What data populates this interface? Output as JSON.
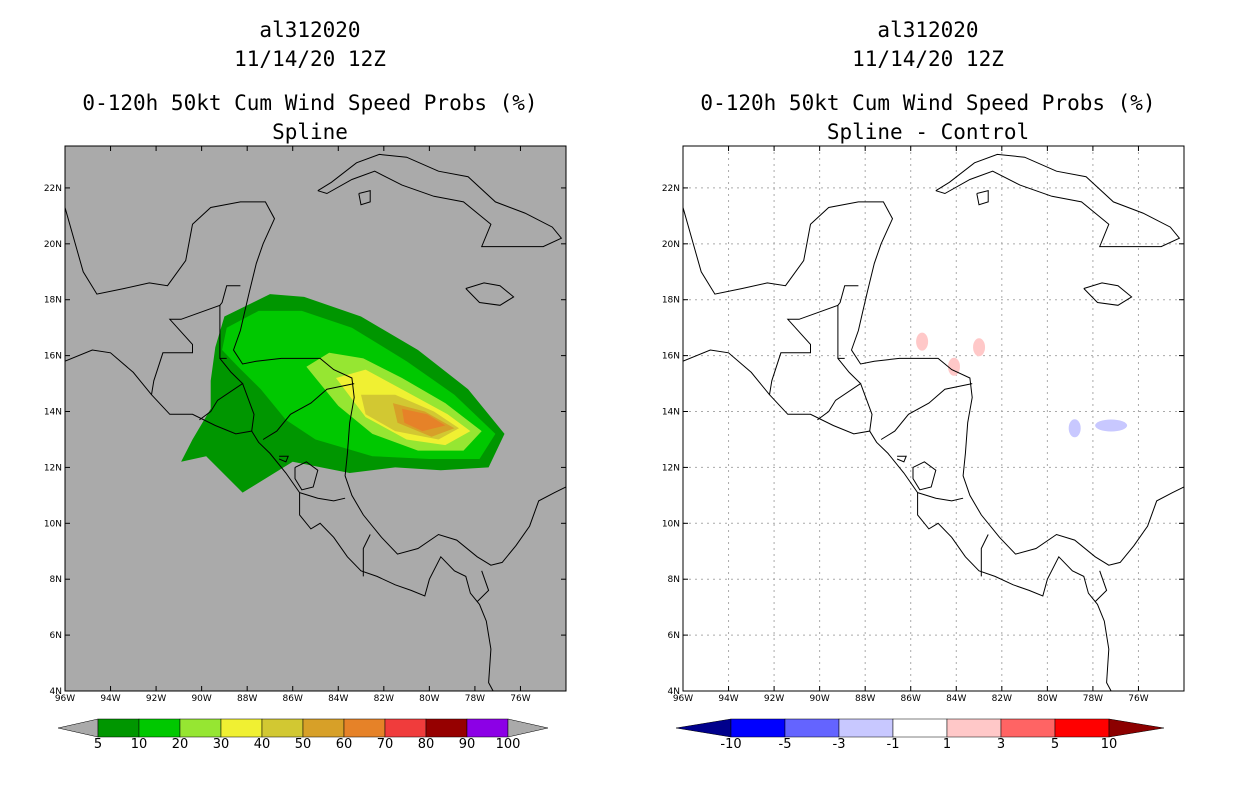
{
  "panels": [
    {
      "title_lines": [
        "al312020",
        "11/14/20 12Z",
        "0-120h 50kt Cum Wind Speed Probs (%)",
        "Spline"
      ],
      "background": "#aaaaaa",
      "colorbar": {
        "labels": [
          "5",
          "10",
          "20",
          "30",
          "40",
          "50",
          "60",
          "70",
          "80",
          "90",
          "100"
        ],
        "colors": [
          "#009600",
          "#00c800",
          "#96e632",
          "#f0f032",
          "#d2c832",
          "#d7a028",
          "#e68228",
          "#f03c3c",
          "#960000",
          "#8c00e6"
        ],
        "extend_color": "#aaaaaa"
      }
    },
    {
      "title_lines": [
        "al312020",
        "11/14/20 12Z",
        "0-120h 50kt Cum Wind Speed Probs (%)",
        "Spline - Control"
      ],
      "background": "#ffffff",
      "colorbar": {
        "labels": [
          "-10",
          "-5",
          "-3",
          "-1",
          "1",
          "3",
          "5",
          "10"
        ],
        "colors": [
          "#0000ff",
          "#6464ff",
          "#c8c8ff",
          "#ffffff",
          "#ffc8c8",
          "#ff6464",
          "#ff0000"
        ],
        "extend_left": "#00008c",
        "extend_right": "#8c0000"
      }
    }
  ],
  "chart_data": [
    {
      "type": "heatmap",
      "title": "0-120h 50kt Cum Wind Speed Probs (%)",
      "subtitle": "Spline",
      "storm": "al312020",
      "date": "11/14/20 12Z",
      "xlim": [
        -96,
        -74
      ],
      "ylim": [
        4,
        23.5
      ],
      "xticks": [
        "96W",
        "94W",
        "92W",
        "90W",
        "88W",
        "86W",
        "84W",
        "82W",
        "80W",
        "78W",
        "76W"
      ],
      "yticks": [
        "4N",
        "6N",
        "8N",
        "10N",
        "12N",
        "14N",
        "16N",
        "18N",
        "20N",
        "22N"
      ],
      "grid": false,
      "contours": [
        {
          "level": 5,
          "polygon": [
            [
              -90.9,
              12.2
            ],
            [
              -90.4,
              13.0
            ],
            [
              -89.6,
              14.1
            ],
            [
              -89.6,
              15.1
            ],
            [
              -89.4,
              16.3
            ],
            [
              -89.0,
              17.4
            ],
            [
              -87.0,
              18.2
            ],
            [
              -85.5,
              18.1
            ],
            [
              -83.0,
              17.4
            ],
            [
              -80.5,
              16.2
            ],
            [
              -78.3,
              14.8
            ],
            [
              -76.7,
              13.2
            ],
            [
              -77.4,
              12.0
            ],
            [
              -79.5,
              11.9
            ],
            [
              -81.5,
              12.0
            ],
            [
              -83.5,
              11.8
            ],
            [
              -86.0,
              12.2
            ],
            [
              -88.2,
              11.1
            ],
            [
              -89.8,
              12.4
            ]
          ]
        },
        {
          "level": 10,
          "polygon": [
            [
              -89.1,
              16.2
            ],
            [
              -88.9,
              17.0
            ],
            [
              -87.5,
              17.6
            ],
            [
              -85.6,
              17.6
            ],
            [
              -83.4,
              17.0
            ],
            [
              -81.0,
              15.8
            ],
            [
              -78.9,
              14.6
            ],
            [
              -77.1,
              13.2
            ],
            [
              -77.8,
              12.3
            ],
            [
              -80.0,
              12.3
            ],
            [
              -82.5,
              12.4
            ],
            [
              -85.0,
              13.0
            ],
            [
              -86.3,
              13.7
            ],
            [
              -87.4,
              14.8
            ],
            [
              -88.4,
              15.6
            ]
          ]
        },
        {
          "level": 20,
          "polygon": [
            [
              -85.4,
              15.6
            ],
            [
              -84.4,
              16.1
            ],
            [
              -82.9,
              15.9
            ],
            [
              -81.2,
              15.2
            ],
            [
              -79.3,
              14.3
            ],
            [
              -77.7,
              13.3
            ],
            [
              -78.5,
              12.6
            ],
            [
              -80.5,
              12.6
            ],
            [
              -82.5,
              13.2
            ],
            [
              -84.0,
              14.2
            ]
          ]
        },
        {
          "level": 30,
          "polygon": [
            [
              -84.1,
              15.2
            ],
            [
              -82.8,
              15.5
            ],
            [
              -81.0,
              14.7
            ],
            [
              -79.2,
              13.9
            ],
            [
              -78.2,
              13.3
            ],
            [
              -79.3,
              12.8
            ],
            [
              -81.0,
              13.0
            ],
            [
              -82.8,
              13.8
            ]
          ]
        },
        {
          "level": 40,
          "polygon": [
            [
              -83.0,
              14.6
            ],
            [
              -81.5,
              14.6
            ],
            [
              -79.8,
              14.0
            ],
            [
              -78.7,
              13.4
            ],
            [
              -79.6,
              13.0
            ],
            [
              -81.5,
              13.3
            ],
            [
              -82.8,
              13.9
            ]
          ]
        },
        {
          "level": 50,
          "polygon": [
            [
              -81.6,
              14.3
            ],
            [
              -80.2,
              14.0
            ],
            [
              -78.9,
              13.4
            ],
            [
              -79.9,
              13.1
            ],
            [
              -81.4,
              13.6
            ]
          ]
        },
        {
          "level": 60,
          "polygon": [
            [
              -81.2,
              14.1
            ],
            [
              -80.1,
              13.9
            ],
            [
              -79.3,
              13.5
            ],
            [
              -80.3,
              13.3
            ],
            [
              -81.1,
              13.6
            ]
          ]
        }
      ]
    },
    {
      "type": "heatmap",
      "title": "0-120h 50kt Cum Wind Speed Probs (%)",
      "subtitle": "Spline - Control",
      "storm": "al312020",
      "date": "11/14/20 12Z",
      "xlim": [
        -96,
        -74
      ],
      "ylim": [
        4,
        23.5
      ],
      "xticks": [
        "96W",
        "94W",
        "92W",
        "90W",
        "88W",
        "86W",
        "84W",
        "82W",
        "80W",
        "78W",
        "76W"
      ],
      "yticks": [
        "4N",
        "6N",
        "8N",
        "10N",
        "12N",
        "14N",
        "16N",
        "18N",
        "20N",
        "22N"
      ],
      "grid": true,
      "anomalies": [
        {
          "range": "1 to 3",
          "lon": -85.5,
          "lat": 16.5
        },
        {
          "range": "1 to 3",
          "lon": -83.0,
          "lat": 16.3
        },
        {
          "range": "1 to 3",
          "lon": -84.1,
          "lat": 15.6
        },
        {
          "range": "-3 to -1",
          "lon": -78.8,
          "lat": 13.4
        },
        {
          "range": "-3 to -1",
          "lon": -77.2,
          "lat": 13.5
        }
      ]
    }
  ]
}
